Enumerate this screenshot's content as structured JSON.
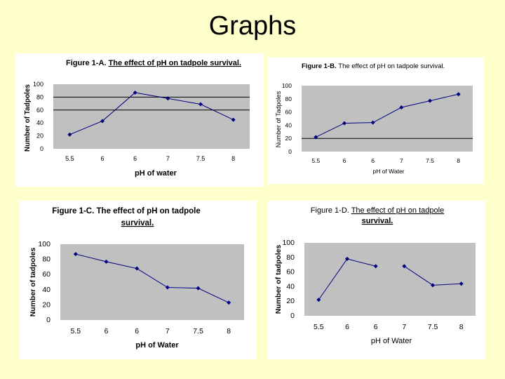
{
  "slide": {
    "title": "Graphs"
  },
  "chart_data": [
    {
      "type": "line",
      "title_prefix": "Figure 1-A.",
      "title": "The effect of pH on tadpole survival.",
      "xlabel": "pH of water",
      "ylabel": "Number of Tadpoles",
      "categories": [
        "5.5",
        "6",
        "6",
        "7",
        "7.5",
        "8"
      ],
      "series": [
        {
          "values": [
            22,
            43,
            87,
            78,
            69,
            45
          ],
          "segments": [
            [
              0,
              5
            ]
          ]
        }
      ],
      "ylim": [
        0,
        100
      ],
      "yticks": [
        0,
        20,
        40,
        60,
        80,
        100
      ],
      "gridlines": [
        60,
        80
      ],
      "plot_fill": "#c0c0c0"
    },
    {
      "type": "line",
      "title_prefix": "Figure 1-B.",
      "title": "The effect of pH on tadpole survival.",
      "xlabel": "pH of Water",
      "ylabel": "Number of Tadpoles",
      "categories": [
        "5.5",
        "6",
        "6",
        "7",
        "7.5",
        "8"
      ],
      "series": [
        {
          "values": [
            22,
            43,
            44,
            67,
            77,
            87
          ],
          "segments": [
            [
              0,
              5
            ]
          ]
        }
      ],
      "ylim": [
        0,
        100
      ],
      "yticks": [
        0,
        20,
        40,
        60,
        80,
        100
      ],
      "gridlines": [
        20
      ],
      "plot_fill": "#c0c0c0"
    },
    {
      "type": "line",
      "title_prefix": "Figure 1-C.",
      "title": "The effect of pH on tadpole",
      "title_line2": "survival.",
      "xlabel": "pH of Water",
      "ylabel": "Number of tadpoles",
      "categories": [
        "5.5",
        "6",
        "6",
        "7",
        "7.5",
        "8"
      ],
      "series": [
        {
          "values": [
            87,
            77,
            68,
            43,
            42,
            23
          ],
          "segments": [
            [
              0,
              5
            ]
          ]
        }
      ],
      "ylim": [
        0,
        100
      ],
      "yticks": [
        0,
        20,
        40,
        60,
        80,
        100
      ],
      "gridlines": [],
      "plot_fill": "#c0c0c0"
    },
    {
      "type": "line",
      "title_prefix": "Figure 1-D.",
      "title": "The effect of pH on tadpole",
      "title_line2": "survival.",
      "xlabel": "pH of Water",
      "ylabel": "Number of tadpoles",
      "categories": [
        "5.5",
        "6",
        "6",
        "7",
        "7.5",
        "8"
      ],
      "series": [
        {
          "values": [
            22,
            78,
            68,
            68,
            42,
            44
          ],
          "segments": [
            [
              0,
              2
            ],
            [
              3,
              5
            ]
          ]
        }
      ],
      "ylim": [
        0,
        100
      ],
      "yticks": [
        0,
        20,
        40,
        60,
        80,
        100
      ],
      "gridlines": [],
      "plot_fill": "#c0c0c0"
    }
  ],
  "colors": {
    "line": "#000080",
    "marker": "#000080",
    "background": "#ffffcc"
  }
}
